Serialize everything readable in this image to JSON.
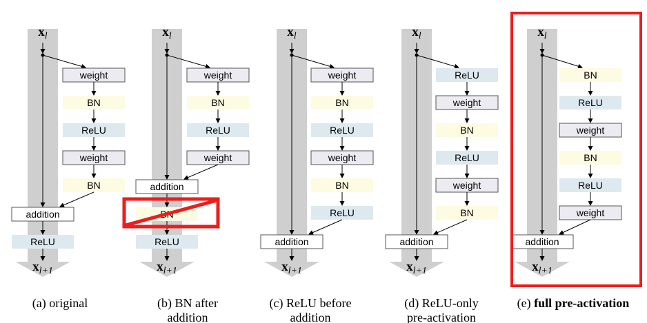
{
  "colors": {
    "shortcut": "#cfcfcf",
    "weight_fill": "#ecebf1",
    "bn_fill": "#fdfbe2",
    "relu_fill": "#dde9ef",
    "addition_fill": "#ffffff",
    "highlight": "#ee1c1c",
    "arrow": "#000000"
  },
  "labels": {
    "input_var": "x",
    "input_sub": "l",
    "output_var": "x",
    "output_sub": "l+1"
  },
  "panels": [
    {
      "id": "a",
      "caption": [
        "(a) original"
      ],
      "caption_bold_part": "",
      "blocks": [
        {
          "label": "weight",
          "type": "weight"
        },
        {
          "label": "BN",
          "type": "bn"
        },
        {
          "label": "ReLU",
          "type": "relu"
        },
        {
          "label": "weight",
          "type": "weight"
        },
        {
          "label": "BN",
          "type": "bn"
        }
      ],
      "after": [
        {
          "label": "ReLU",
          "type": "relu"
        }
      ]
    },
    {
      "id": "b",
      "caption": [
        "(b) BN after",
        "addition"
      ],
      "caption_bold_part": "",
      "crossed": true,
      "blocks": [
        {
          "label": "weight",
          "type": "weight"
        },
        {
          "label": "BN",
          "type": "bn"
        },
        {
          "label": "ReLU",
          "type": "relu"
        },
        {
          "label": "weight",
          "type": "weight"
        }
      ],
      "after": [
        {
          "label": "BN",
          "type": "bn"
        },
        {
          "label": "ReLU",
          "type": "relu"
        }
      ]
    },
    {
      "id": "c",
      "caption": [
        "(c) ReLU before",
        "addition"
      ],
      "caption_bold_part": "",
      "blocks": [
        {
          "label": "weight",
          "type": "weight"
        },
        {
          "label": "BN",
          "type": "bn"
        },
        {
          "label": "ReLU",
          "type": "relu"
        },
        {
          "label": "weight",
          "type": "weight"
        },
        {
          "label": "BN",
          "type": "bn"
        },
        {
          "label": "ReLU",
          "type": "relu"
        }
      ],
      "after": []
    },
    {
      "id": "d",
      "caption": [
        "(d) ReLU-only",
        "pre-activation"
      ],
      "caption_bold_part": "",
      "blocks": [
        {
          "label": "ReLU",
          "type": "relu"
        },
        {
          "label": "weight",
          "type": "weight"
        },
        {
          "label": "BN",
          "type": "bn"
        },
        {
          "label": "ReLU",
          "type": "relu"
        },
        {
          "label": "weight",
          "type": "weight"
        },
        {
          "label": "BN",
          "type": "bn"
        }
      ],
      "after": []
    },
    {
      "id": "e",
      "caption": [
        "(e) "
      ],
      "caption_bold_part": "full pre-activation",
      "highlighted": true,
      "blocks": [
        {
          "label": "BN",
          "type": "bn"
        },
        {
          "label": "ReLU",
          "type": "relu"
        },
        {
          "label": "weight",
          "type": "weight"
        },
        {
          "label": "BN",
          "type": "bn"
        },
        {
          "label": "ReLU",
          "type": "relu"
        },
        {
          "label": "weight",
          "type": "weight"
        }
      ],
      "after": []
    }
  ],
  "addition_label": "addition"
}
